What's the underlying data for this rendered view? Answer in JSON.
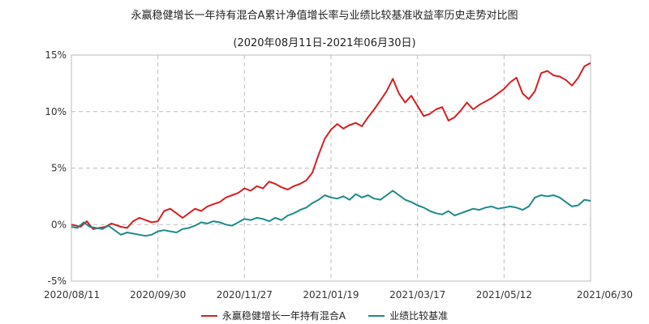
{
  "chart_data": {
    "type": "line",
    "title": "永赢稳健增长一年持有混合A累计净值增长率与业绩比较基准收益率历史走势对比图",
    "subtitle": "(2020年08月11日-2021年06月30日)",
    "x_tick_labels": [
      "2020/08/11",
      "2020/09/30",
      "2020/11/27",
      "2021/01/19",
      "2021/03/17",
      "2021/05/12",
      "2021/06/30"
    ],
    "y_tick_labels": [
      "15%",
      "10%",
      "5%",
      "0%",
      "-5%"
    ],
    "y_ticks": [
      15,
      10,
      5,
      0,
      -5
    ],
    "ylim": [
      -5,
      15
    ],
    "grid": true,
    "legend_position": "bottom-center",
    "series": [
      {
        "name": "永赢稳健增长一年持有混合A",
        "color": "#d42020",
        "points": [
          [
            0,
            0
          ],
          [
            0.8,
            -0.1
          ],
          [
            1.5,
            -0.2
          ],
          [
            2.5,
            0.3
          ],
          [
            3.5,
            -0.4
          ],
          [
            4.5,
            -0.3
          ],
          [
            5.5,
            -0.2
          ],
          [
            6.5,
            0.1
          ],
          [
            8,
            -0.2
          ],
          [
            9,
            -0.3
          ],
          [
            10,
            0.3
          ],
          [
            11,
            0.6
          ],
          [
            12,
            0.4
          ],
          [
            13,
            0.2
          ],
          [
            14,
            0.3
          ],
          [
            15,
            1.2
          ],
          [
            16,
            1.4
          ],
          [
            17,
            1.0
          ],
          [
            18,
            0.6
          ],
          [
            19,
            1.0
          ],
          [
            20,
            1.4
          ],
          [
            21,
            1.2
          ],
          [
            22,
            1.6
          ],
          [
            23,
            1.8
          ],
          [
            24,
            2.0
          ],
          [
            25,
            2.4
          ],
          [
            26,
            2.6
          ],
          [
            27,
            2.8
          ],
          [
            28,
            3.2
          ],
          [
            29,
            3.0
          ],
          [
            30,
            3.4
          ],
          [
            31,
            3.2
          ],
          [
            32,
            3.8
          ],
          [
            33,
            3.6
          ],
          [
            34,
            3.3
          ],
          [
            35,
            3.1
          ],
          [
            36,
            3.4
          ],
          [
            37,
            3.6
          ],
          [
            38,
            3.9
          ],
          [
            39,
            4.6
          ],
          [
            40,
            6.2
          ],
          [
            41,
            7.6
          ],
          [
            42,
            8.4
          ],
          [
            43,
            8.9
          ],
          [
            44,
            8.5
          ],
          [
            45,
            8.8
          ],
          [
            46,
            9.0
          ],
          [
            47,
            8.7
          ],
          [
            48,
            9.5
          ],
          [
            49,
            10.2
          ],
          [
            50,
            11.0
          ],
          [
            51,
            11.8
          ],
          [
            52,
            12.9
          ],
          [
            53,
            11.6
          ],
          [
            54,
            10.8
          ],
          [
            55,
            11.4
          ],
          [
            56,
            10.5
          ],
          [
            57,
            9.6
          ],
          [
            58,
            9.8
          ],
          [
            59,
            10.2
          ],
          [
            60,
            10.4
          ],
          [
            61,
            9.2
          ],
          [
            62,
            9.5
          ],
          [
            63,
            10.1
          ],
          [
            64,
            10.8
          ],
          [
            65,
            10.2
          ],
          [
            66,
            10.6
          ],
          [
            67,
            10.9
          ],
          [
            68,
            11.2
          ],
          [
            69,
            11.6
          ],
          [
            70,
            12.0
          ],
          [
            71,
            12.6
          ],
          [
            72,
            13.0
          ],
          [
            73,
            11.6
          ],
          [
            74,
            11.1
          ],
          [
            75,
            11.8
          ],
          [
            76,
            13.4
          ],
          [
            77,
            13.6
          ],
          [
            78,
            13.2
          ],
          [
            79,
            13.1
          ],
          [
            80,
            12.8
          ],
          [
            81,
            12.3
          ],
          [
            82,
            13.0
          ],
          [
            83,
            14.0
          ],
          [
            84,
            14.3
          ]
        ]
      },
      {
        "name": "业绩比较基准",
        "color": "#1e8a8a",
        "points": [
          [
            0,
            -0.2
          ],
          [
            1,
            -0.3
          ],
          [
            2,
            0.2
          ],
          [
            3,
            -0.2
          ],
          [
            4,
            -0.3
          ],
          [
            5,
            -0.4
          ],
          [
            6,
            -0.1
          ],
          [
            7,
            -0.5
          ],
          [
            8,
            -0.9
          ],
          [
            9,
            -0.7
          ],
          [
            10,
            -0.8
          ],
          [
            11,
            -0.9
          ],
          [
            12,
            -1.0
          ],
          [
            13,
            -0.9
          ],
          [
            14,
            -0.6
          ],
          [
            15,
            -0.5
          ],
          [
            16,
            -0.6
          ],
          [
            17,
            -0.7
          ],
          [
            18,
            -0.4
          ],
          [
            19,
            -0.3
          ],
          [
            20,
            -0.1
          ],
          [
            21,
            0.2
          ],
          [
            22,
            0.1
          ],
          [
            23,
            0.3
          ],
          [
            24,
            0.2
          ],
          [
            25,
            0.0
          ],
          [
            26,
            -0.1
          ],
          [
            27,
            0.2
          ],
          [
            28,
            0.5
          ],
          [
            29,
            0.4
          ],
          [
            30,
            0.6
          ],
          [
            31,
            0.5
          ],
          [
            32,
            0.3
          ],
          [
            33,
            0.6
          ],
          [
            34,
            0.4
          ],
          [
            35,
            0.8
          ],
          [
            36,
            1.0
          ],
          [
            37,
            1.3
          ],
          [
            38,
            1.5
          ],
          [
            39,
            1.9
          ],
          [
            40,
            2.2
          ],
          [
            41,
            2.6
          ],
          [
            42,
            2.4
          ],
          [
            43,
            2.3
          ],
          [
            44,
            2.5
          ],
          [
            45,
            2.2
          ],
          [
            46,
            2.7
          ],
          [
            47,
            2.4
          ],
          [
            48,
            2.6
          ],
          [
            49,
            2.3
          ],
          [
            50,
            2.2
          ],
          [
            51,
            2.6
          ],
          [
            52,
            3.0
          ],
          [
            53,
            2.6
          ],
          [
            54,
            2.2
          ],
          [
            55,
            2.0
          ],
          [
            56,
            1.7
          ],
          [
            57,
            1.5
          ],
          [
            58,
            1.2
          ],
          [
            59,
            1.0
          ],
          [
            60,
            0.9
          ],
          [
            61,
            1.2
          ],
          [
            62,
            0.8
          ],
          [
            63,
            1.0
          ],
          [
            64,
            1.2
          ],
          [
            65,
            1.4
          ],
          [
            66,
            1.3
          ],
          [
            67,
            1.5
          ],
          [
            68,
            1.6
          ],
          [
            69,
            1.4
          ],
          [
            70,
            1.5
          ],
          [
            71,
            1.6
          ],
          [
            72,
            1.5
          ],
          [
            73,
            1.3
          ],
          [
            74,
            1.6
          ],
          [
            75,
            2.4
          ],
          [
            76,
            2.6
          ],
          [
            77,
            2.5
          ],
          [
            78,
            2.6
          ],
          [
            79,
            2.4
          ],
          [
            80,
            2.0
          ],
          [
            81,
            1.6
          ],
          [
            82,
            1.7
          ],
          [
            83,
            2.2
          ],
          [
            84,
            2.1
          ]
        ]
      }
    ]
  }
}
